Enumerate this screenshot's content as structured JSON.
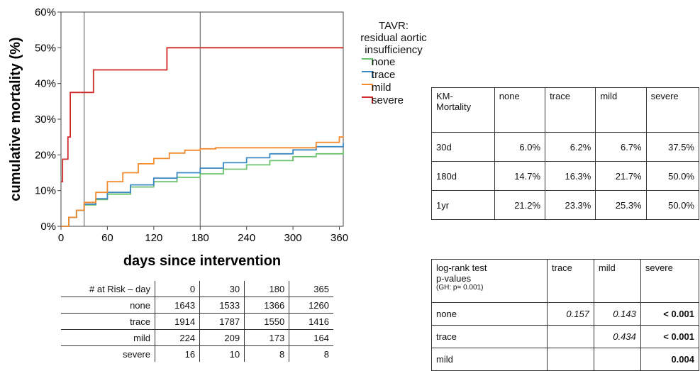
{
  "chart_data": {
    "type": "line",
    "step": true,
    "xlabel": "days since intervention",
    "ylabel": "cumulative mortality (%)",
    "xlim": [
      0,
      365
    ],
    "ylim": [
      0,
      60
    ],
    "xticks": [
      "0",
      "60",
      "120",
      "180",
      "240",
      "300",
      "360"
    ],
    "yticks": [
      "0%",
      "10%",
      "20%",
      "30%",
      "40%",
      "50%",
      "60%"
    ],
    "grid": false,
    "vertical_reference_lines_days": [
      30,
      180
    ],
    "legend_position": "right",
    "legend_title": [
      "TAVR:",
      "residual aortic",
      "insufficiency"
    ],
    "series": [
      {
        "name": "none",
        "color": "#6cc26c",
        "x": [
          0,
          10,
          20,
          30,
          45,
          60,
          90,
          120,
          150,
          180,
          210,
          240,
          270,
          300,
          330,
          365
        ],
        "y": [
          0,
          2.5,
          4.5,
          6.0,
          7.5,
          9.0,
          11.0,
          12.5,
          13.7,
          14.7,
          16.0,
          17.2,
          18.4,
          19.5,
          20.3,
          21.2
        ]
      },
      {
        "name": "trace",
        "color": "#3b88c2",
        "x": [
          0,
          10,
          20,
          30,
          45,
          60,
          90,
          120,
          150,
          180,
          210,
          240,
          270,
          300,
          330,
          365
        ],
        "y": [
          0,
          2.5,
          4.5,
          6.2,
          7.7,
          9.5,
          11.6,
          13.5,
          15.0,
          16.3,
          17.8,
          19.2,
          20.3,
          21.4,
          22.3,
          23.3
        ]
      },
      {
        "name": "mild",
        "color": "#f28a2e",
        "x": [
          0,
          10,
          20,
          30,
          45,
          60,
          80,
          100,
          120,
          140,
          160,
          180,
          200,
          300,
          330,
          360,
          365
        ],
        "y": [
          0,
          2.5,
          4.5,
          6.7,
          9.5,
          12.5,
          15.0,
          17.5,
          19.0,
          20.5,
          21.3,
          21.7,
          22.0,
          22.0,
          23.5,
          25.0,
          25.3
        ]
      },
      {
        "name": "severe",
        "color": "#d12a2a",
        "x": [
          0,
          2,
          9,
          12,
          42,
          137,
          365
        ],
        "y": [
          12.5,
          18.8,
          25.0,
          37.5,
          43.8,
          50.0,
          50.0
        ]
      }
    ]
  },
  "km_table": {
    "header": [
      "KM-\nMortality",
      "none",
      "trace",
      "mild",
      "severe"
    ],
    "rows": [
      [
        "30d",
        "6.0%",
        "6.2%",
        "6.7%",
        "37.5%"
      ],
      [
        "180d",
        "14.7%",
        "16.3%",
        "21.7%",
        "50.0%"
      ],
      [
        "1yr",
        "21.2%",
        "23.3%",
        "25.3%",
        "50.0%"
      ]
    ]
  },
  "logrank_table": {
    "header_main": "log-rank test\np-values",
    "header_sub": "(GH: p= 0.001)",
    "header_cols": [
      "trace",
      "mild",
      "severe"
    ],
    "rows": [
      [
        "none",
        "0.157",
        "0.143",
        "< 0.001"
      ],
      [
        "trace",
        "",
        "0.434",
        "< 0.001"
      ],
      [
        "mild",
        "",
        "",
        "0.004"
      ]
    ]
  },
  "risk_table": {
    "header": [
      "# at Risk – day",
      "0",
      "30",
      "180",
      "365"
    ],
    "rows": [
      [
        "none",
        "1643",
        "1533",
        "1366",
        "1260"
      ],
      [
        "trace",
        "1914",
        "1787",
        "1550",
        "1416"
      ],
      [
        "mild",
        "224",
        "209",
        "173",
        "164"
      ],
      [
        "severe",
        "16",
        "10",
        "8",
        "8"
      ]
    ]
  }
}
